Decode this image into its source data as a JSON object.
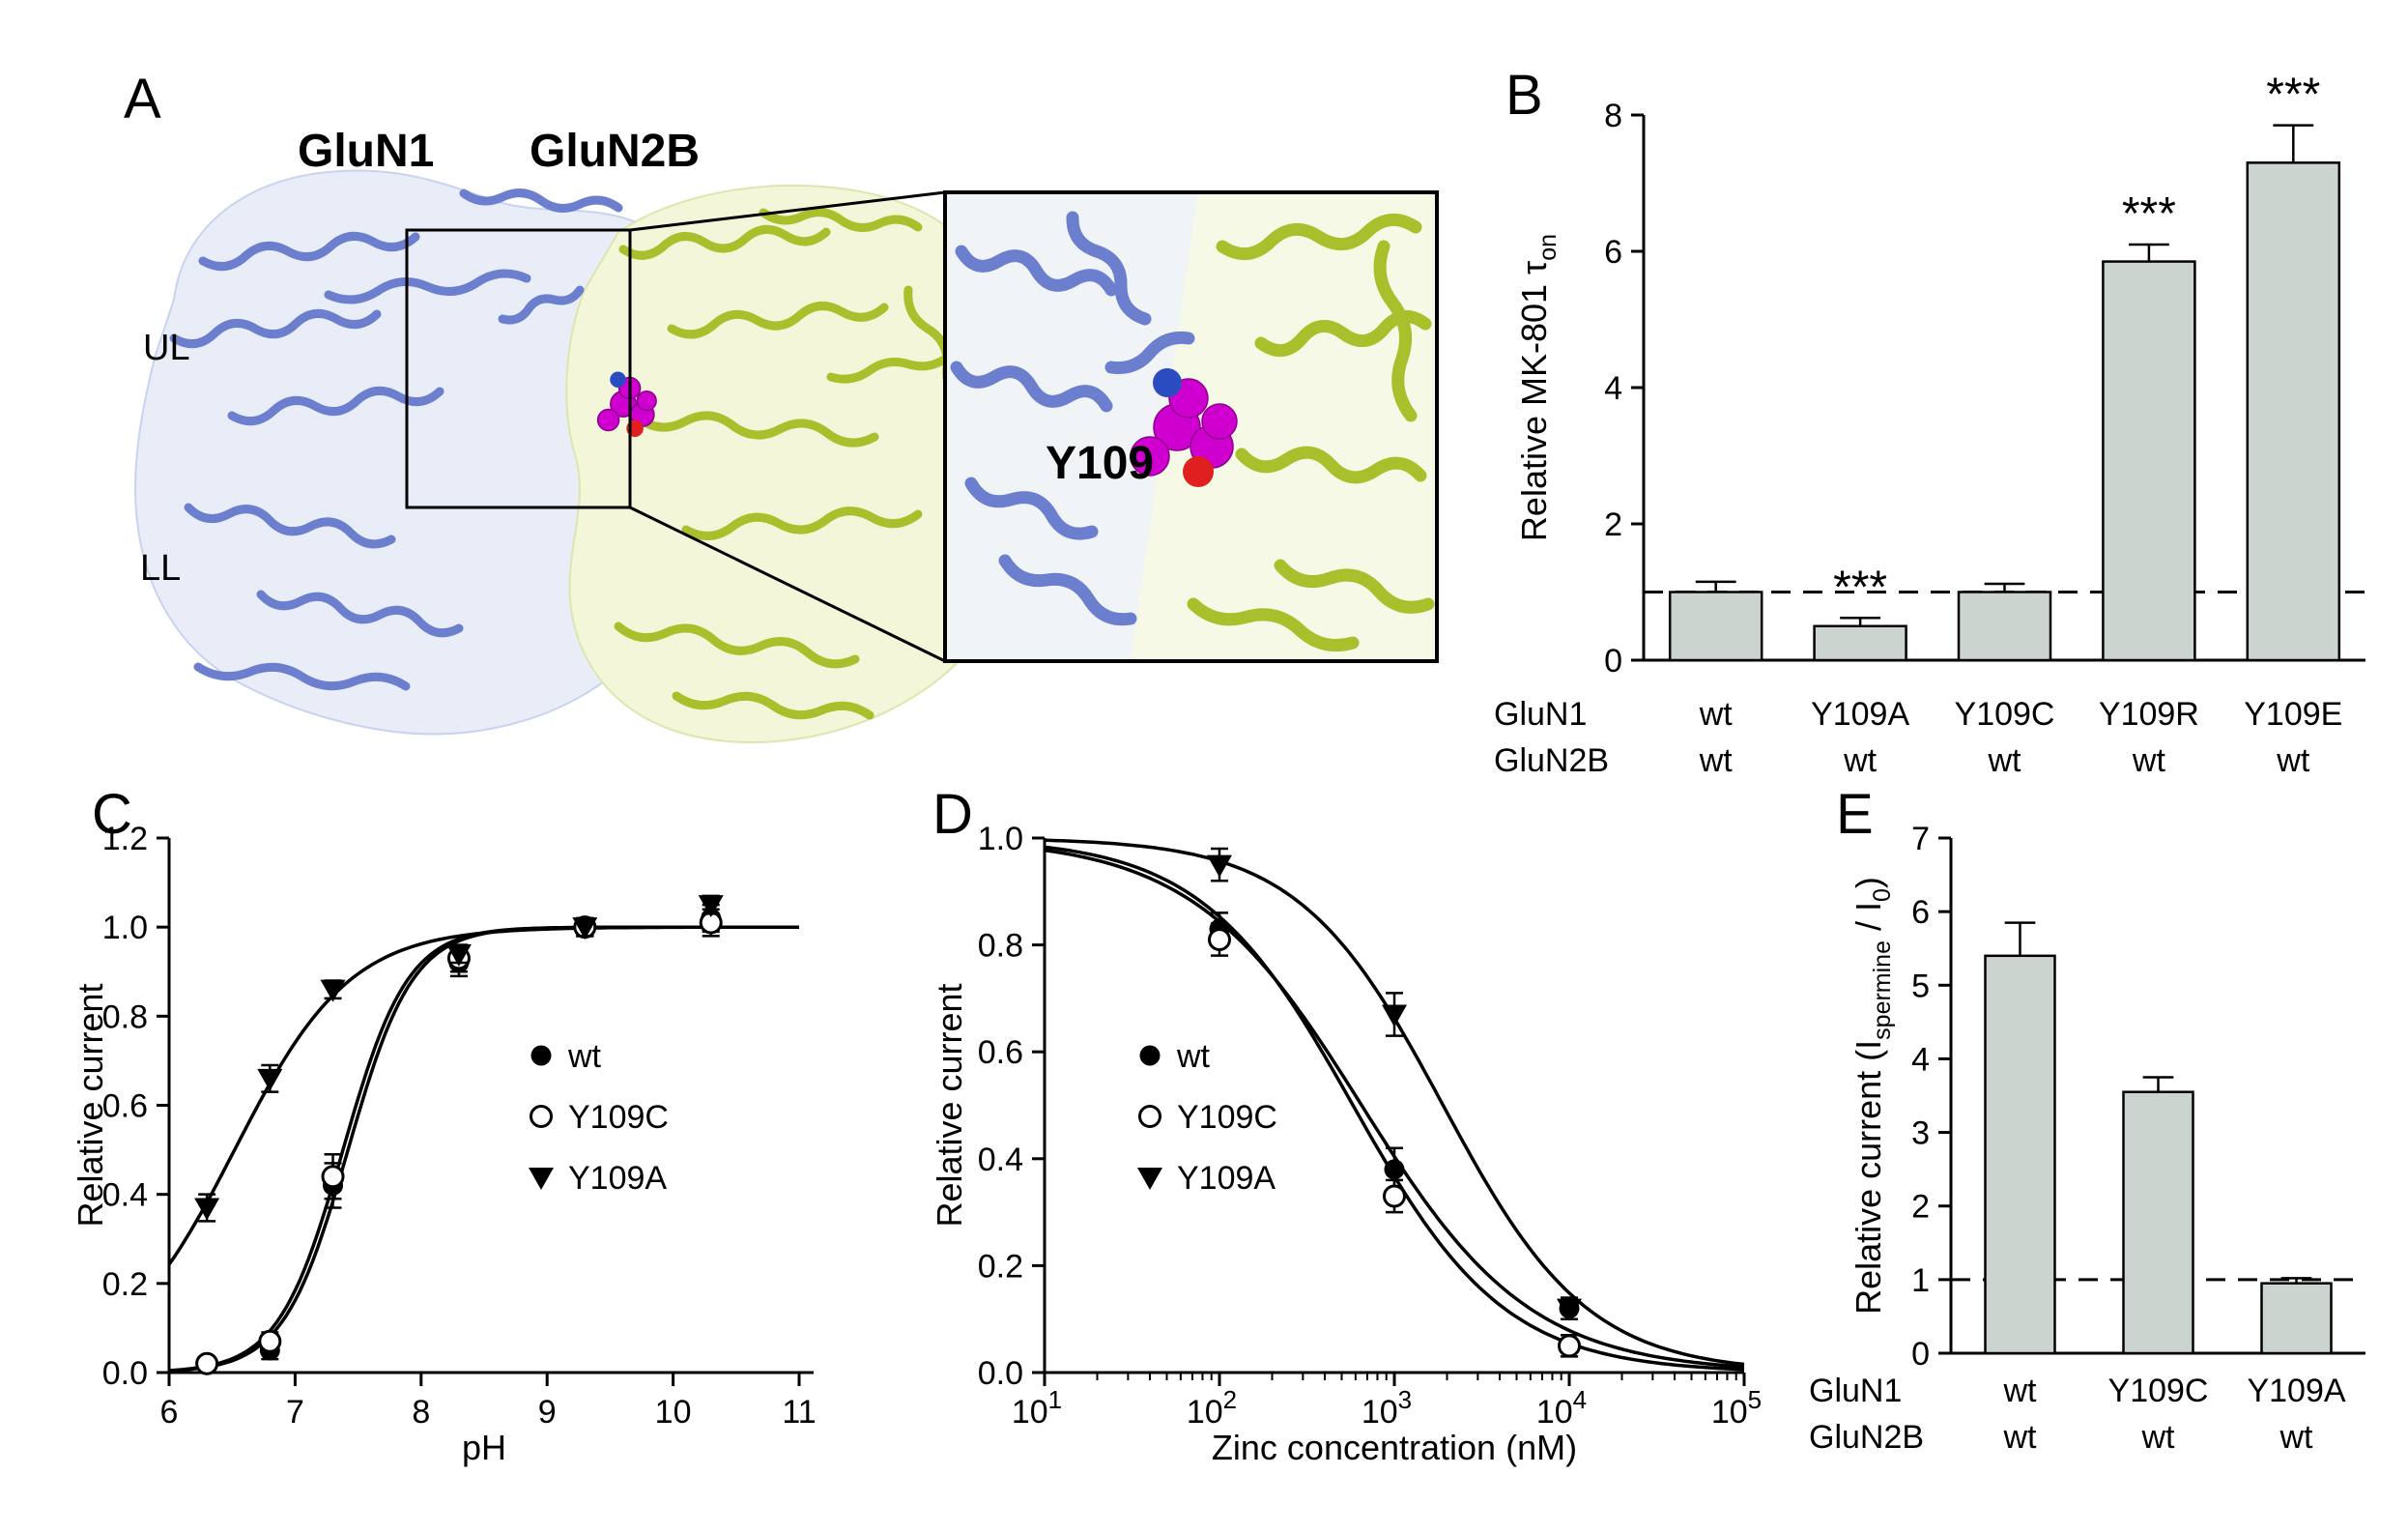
{
  "panelA": {
    "label": "A",
    "glun1": "GluN1",
    "glun2b": "GluN2B",
    "ul": "UL",
    "ll": "LL",
    "residue": "Y109",
    "colors": {
      "glun1_ribbon": "#6b7fce",
      "glun1_surface": "#e9edf8",
      "glun2b_ribbon": "#a9bf2b",
      "glun2b_surface": "#f3f6d9",
      "residue_magenta": "#cf00cf",
      "residue_red": "#e02020",
      "residue_blue": "#2b4bc0"
    }
  },
  "chart_data": [
    {
      "id": "B",
      "panel_label": "B",
      "type": "bar",
      "ylabel_parts": [
        {
          "t": "Relative MK-801 τ"
        },
        {
          "t": "on",
          "sub": true
        }
      ],
      "ylim": [
        0,
        8
      ],
      "yticks": [
        0,
        2,
        4,
        6,
        8
      ],
      "ytick_labels": [
        "0",
        "2",
        "4",
        "6",
        "8"
      ],
      "xrow_labels": [
        "GluN1",
        "GluN2B"
      ],
      "categories": [
        {
          "row1": "wt",
          "row2": "wt"
        },
        {
          "row1": "Y109A",
          "row2": "wt"
        },
        {
          "row1": "Y109C",
          "row2": "wt"
        },
        {
          "row1": "Y109R",
          "row2": "wt"
        },
        {
          "row1": "Y109E",
          "row2": "wt"
        }
      ],
      "values": [
        1.0,
        0.5,
        1.0,
        5.85,
        7.3
      ],
      "errors": [
        0.15,
        0.12,
        0.12,
        0.25,
        0.55
      ],
      "significance": [
        "",
        "***",
        "",
        "***",
        "***"
      ],
      "dashed_line": 1.0,
      "bar_fill": "#ccd4d0"
    },
    {
      "id": "C",
      "panel_label": "C",
      "type": "line",
      "xlabel": "pH",
      "ylabel_parts": [
        {
          "t": "Relative current"
        }
      ],
      "xlim": [
        6,
        11
      ],
      "ylim": [
        0,
        1.2
      ],
      "xticks": [
        6,
        7,
        8,
        9,
        10,
        11
      ],
      "xtick_labels": [
        "6",
        "7",
        "8",
        "9",
        "10",
        "11"
      ],
      "yticks": [
        0,
        0.2,
        0.4,
        0.6,
        0.8,
        1.0,
        1.2
      ],
      "ytick_labels": [
        "0.0",
        "0.2",
        "0.4",
        "0.6",
        "0.8",
        "1.0",
        "1.2"
      ],
      "fit_type": "activation",
      "legend_position": "middle-right",
      "series": [
        {
          "name": "wt",
          "marker": "filled-circle",
          "x": [
            6.3,
            6.8,
            7.3,
            8.3,
            9.3,
            10.3
          ],
          "y": [
            0.02,
            0.05,
            0.42,
            0.92,
            1.0,
            1.02
          ],
          "errors": [
            0.01,
            0.02,
            0.05,
            0.03,
            0.02,
            0.03
          ],
          "fit": {
            "x50": 7.42,
            "hill": 1.7
          }
        },
        {
          "name": "Y109C",
          "marker": "open-circle",
          "x": [
            6.3,
            6.8,
            7.3,
            8.3,
            9.3,
            10.3
          ],
          "y": [
            0.02,
            0.07,
            0.44,
            0.93,
            1.0,
            1.01
          ],
          "errors": [
            0.01,
            0.02,
            0.05,
            0.03,
            0.02,
            0.03
          ],
          "fit": {
            "x50": 7.38,
            "hill": 1.7
          }
        },
        {
          "name": "Y109A",
          "marker": "filled-triangle-down",
          "x": [
            6.3,
            6.8,
            7.3,
            8.3,
            9.3,
            10.3
          ],
          "y": [
            0.37,
            0.66,
            0.86,
            0.94,
            1.0,
            1.05
          ],
          "errors": [
            0.03,
            0.03,
            0.02,
            0.02,
            0.02,
            0.02
          ],
          "fit": {
            "x50": 6.52,
            "hill": 0.95
          }
        }
      ]
    },
    {
      "id": "D",
      "panel_label": "D",
      "type": "line",
      "xlabel": "Zinc concentration (nM)",
      "ylabel_parts": [
        {
          "t": "Relative current"
        }
      ],
      "xscale": "log",
      "xlim": [
        10,
        100000
      ],
      "xtick_base": "10",
      "xtick_exponents": [
        1,
        2,
        3,
        4,
        5
      ],
      "ylim": [
        0,
        1.0
      ],
      "yticks": [
        0,
        0.2,
        0.4,
        0.6,
        0.8,
        1.0
      ],
      "ytick_labels": [
        "0.0",
        "0.2",
        "0.4",
        "0.6",
        "0.8",
        "1.0"
      ],
      "fit_type": "inhibition",
      "legend_position": "middle-left",
      "series": [
        {
          "name": "wt",
          "marker": "filled-circle",
          "x": [
            100,
            1000,
            10000
          ],
          "y": [
            0.83,
            0.38,
            0.12
          ],
          "errors": [
            0.03,
            0.04,
            0.02
          ],
          "fit": {
            "x50": 650,
            "hill": 0.9
          }
        },
        {
          "name": "Y109C",
          "marker": "open-circle",
          "x": [
            100,
            1000,
            10000
          ],
          "y": [
            0.81,
            0.33,
            0.05
          ],
          "errors": [
            0.03,
            0.03,
            0.02
          ],
          "fit": {
            "x50": 580,
            "hill": 1.0
          }
        },
        {
          "name": "Y109A",
          "marker": "filled-triangle-down",
          "x": [
            100,
            1000,
            10000
          ],
          "y": [
            0.95,
            0.67,
            0.12
          ],
          "errors": [
            0.03,
            0.04,
            0.02
          ],
          "fit": {
            "x50": 1900,
            "hill": 1.05
          }
        }
      ]
    },
    {
      "id": "E",
      "panel_label": "E",
      "type": "bar",
      "ylabel_parts": [
        {
          "t": "Relative current (I"
        },
        {
          "t": "spermine",
          "sub": true
        },
        {
          "t": " / I"
        },
        {
          "t": "0",
          "sub": true
        },
        {
          "t": ")"
        }
      ],
      "ylim": [
        0,
        7
      ],
      "yticks": [
        0,
        1,
        2,
        3,
        4,
        5,
        6,
        7
      ],
      "ytick_labels": [
        "0",
        "1",
        "2",
        "3",
        "4",
        "5",
        "6",
        "7"
      ],
      "xrow_labels": [
        "GluN1",
        "GluN2B"
      ],
      "categories": [
        {
          "row1": "wt",
          "row2": "wt"
        },
        {
          "row1": "Y109C",
          "row2": "wt"
        },
        {
          "row1": "Y109A",
          "row2": "wt"
        }
      ],
      "values": [
        5.4,
        3.55,
        0.95
      ],
      "errors": [
        0.45,
        0.2,
        0.07
      ],
      "significance": [
        "",
        "",
        ""
      ],
      "dashed_line": 1.0,
      "bar_fill": "#ccd4d0"
    }
  ]
}
